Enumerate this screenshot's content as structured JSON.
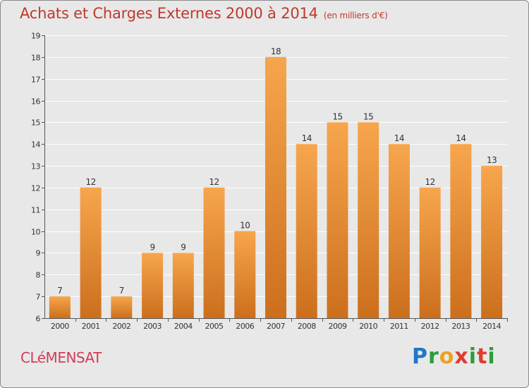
{
  "header": {
    "title": "Achats et Charges Externes 2000 à 2014",
    "subtitle": "(en milliers d'€)"
  },
  "footer": {
    "commune": "CLéMENSAT",
    "brand": {
      "letters": [
        "P",
        "r",
        "o",
        "x",
        "i",
        "t",
        "i"
      ],
      "colors": [
        "#1f77c8",
        "#2a9d3a",
        "#f0a020",
        "#e03b2e",
        "#2a9d3a",
        "#e03b2e",
        "#2a9d3a"
      ]
    }
  },
  "colors": {
    "bar_top": "#f7a64d",
    "bar_bottom": "#cc6f1d",
    "title": "#c0392b",
    "axis": "#555555"
  },
  "chart_data": {
    "type": "bar",
    "categories": [
      "2000",
      "2001",
      "2002",
      "2003",
      "2004",
      "2005",
      "2006",
      "2007",
      "2008",
      "2009",
      "2010",
      "2011",
      "2012",
      "2013",
      "2014"
    ],
    "values": [
      7,
      12,
      7,
      9,
      9,
      12,
      10,
      18,
      14,
      15,
      15,
      14,
      12,
      14,
      13
    ],
    "yticks": [
      6,
      7,
      8,
      9,
      10,
      11,
      12,
      13,
      14,
      15,
      16,
      17,
      18,
      19
    ],
    "ylim": [
      6,
      19
    ],
    "grid": true
  }
}
